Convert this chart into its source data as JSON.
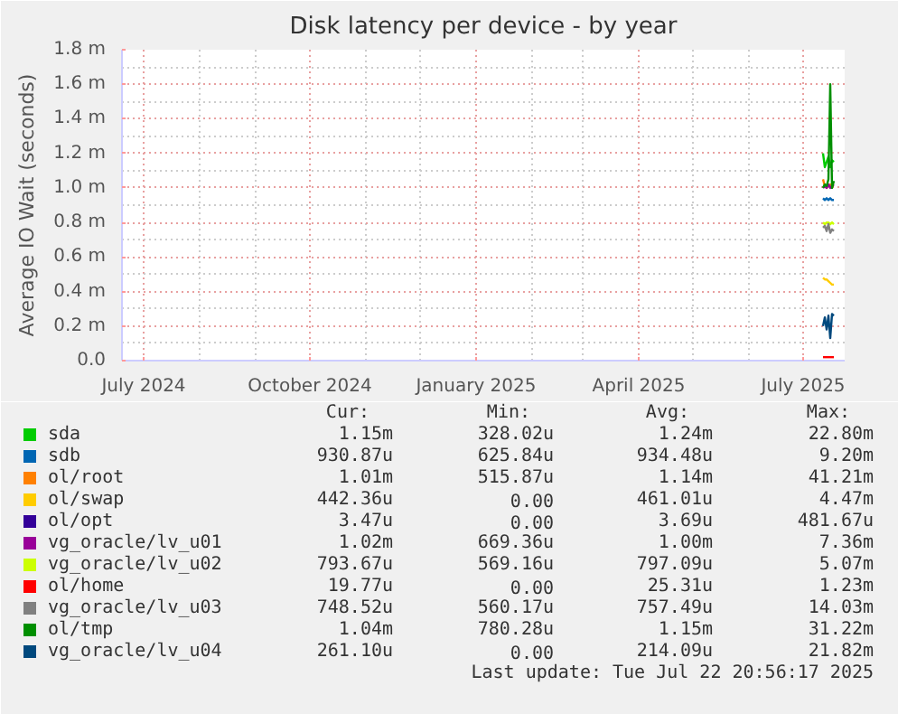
{
  "chart_data": {
    "type": "line",
    "title": "Disk latency per device - by year",
    "ylabel": "Average IO Wait (seconds)",
    "x": [
      "2025-07-12",
      "2025-07-13",
      "2025-07-14",
      "2025-07-15",
      "2025-07-16",
      "2025-07-17",
      "2025-07-18"
    ],
    "xlim": [
      "2024-06-19",
      "2025-07-24"
    ],
    "xticks": [
      {
        "value": "2024-07-01",
        "label": "July 2024"
      },
      {
        "value": "2024-10-01",
        "label": "October 2024"
      },
      {
        "value": "2025-01-01",
        "label": "January 2025"
      },
      {
        "value": "2025-04-01",
        "label": "April 2025"
      },
      {
        "value": "2025-07-01",
        "label": "July 2025"
      }
    ],
    "ylim": [
      0,
      1.8
    ],
    "yticks": [
      {
        "value": 0,
        "label": "0.0"
      },
      {
        "value": 0.2,
        "label": "0.2 m"
      },
      {
        "value": 0.4,
        "label": "0.4 m"
      },
      {
        "value": 0.6,
        "label": "0.6 m"
      },
      {
        "value": 0.8,
        "label": "0.8 m"
      },
      {
        "value": 1.0,
        "label": "1.0 m"
      },
      {
        "value": 1.2,
        "label": "1.2 m"
      },
      {
        "value": 1.4,
        "label": "1.4 m"
      },
      {
        "value": 1.6,
        "label": "1.6 m"
      },
      {
        "value": 1.8,
        "label": "1.8 m"
      }
    ],
    "grid": true,
    "legend": "bottom",
    "marker": "none",
    "line_style": "solid",
    "series": [
      {
        "name": "sda",
        "color": "#00cc00",
        "values": [
          1.2,
          1.12,
          1.15,
          1.18,
          1.12,
          1.16,
          1.15
        ]
      },
      {
        "name": "sdb",
        "color": "#0066b3",
        "values": [
          0.94,
          0.93,
          0.94,
          0.93,
          0.94,
          0.93,
          0.93
        ]
      },
      {
        "name": "ol/root",
        "color": "#ff8000",
        "values": [
          1.05,
          1.01,
          1.0,
          1.01,
          1.02,
          1.01,
          1.01
        ]
      },
      {
        "name": "ol/swap",
        "color": "#ffcc00",
        "values": [
          0.48,
          0.47,
          0.47,
          0.46,
          0.45,
          0.44,
          0.44
        ]
      },
      {
        "name": "ol/opt",
        "color": "#330099",
        "values": [
          null,
          null,
          null,
          null,
          null,
          null,
          null
        ]
      },
      {
        "name": "vg_oracle/lv_u01",
        "color": "#990099",
        "values": [
          1.0,
          1.01,
          1.0,
          1.02,
          1.0,
          1.01,
          1.02
        ]
      },
      {
        "name": "vg_oracle/lv_u02",
        "color": "#ccff00",
        "values": [
          0.8,
          0.79,
          0.8,
          0.8,
          0.79,
          0.8,
          0.79
        ]
      },
      {
        "name": "ol/home",
        "color": "#ff0000",
        "values": [
          0.02,
          0.02,
          0.02,
          0.02,
          0.02,
          0.02,
          0.02
        ]
      },
      {
        "name": "vg_oracle/lv_u03",
        "color": "#808080",
        "values": [
          0.77,
          0.78,
          0.75,
          0.79,
          0.74,
          0.76,
          0.75
        ]
      },
      {
        "name": "ol/tmp",
        "color": "#008f00",
        "values": [
          1.0,
          1.02,
          1.01,
          1.05,
          1.6,
          1.0,
          1.04
        ]
      },
      {
        "name": "vg_oracle/lv_u04",
        "color": "#00487d",
        "values": [
          0.2,
          0.25,
          0.18,
          0.26,
          0.13,
          0.27,
          0.26
        ]
      }
    ],
    "annotations": [
      "Cur:",
      "Min:",
      "Avg:",
      "Max:",
      "1.15m",
      "328.02u",
      "1.24m",
      "22.80m",
      "930.87u",
      "625.84u",
      "934.48u",
      "9.20m",
      "1.01m",
      "515.87u",
      "1.14m",
      "41.21m",
      "442.36u",
      "0.00",
      "461.01u",
      "4.47m",
      "3.47u",
      "0.00",
      "3.69u",
      "481.67u",
      "1.02m",
      "669.36u",
      "1.00m",
      "7.36m",
      "793.67u",
      "569.16u",
      "797.09u",
      "5.07m",
      "19.77u",
      "0.00",
      "25.31u",
      "1.23m",
      "748.52u",
      "560.17u",
      "757.49u",
      "14.03m",
      "1.04m",
      "780.28u",
      "1.15m",
      "31.22m",
      "261.10u",
      "0.00",
      "214.09u",
      "21.82m",
      "Last update: Tue Jul 22 20:56:17 2025"
    ]
  }
}
